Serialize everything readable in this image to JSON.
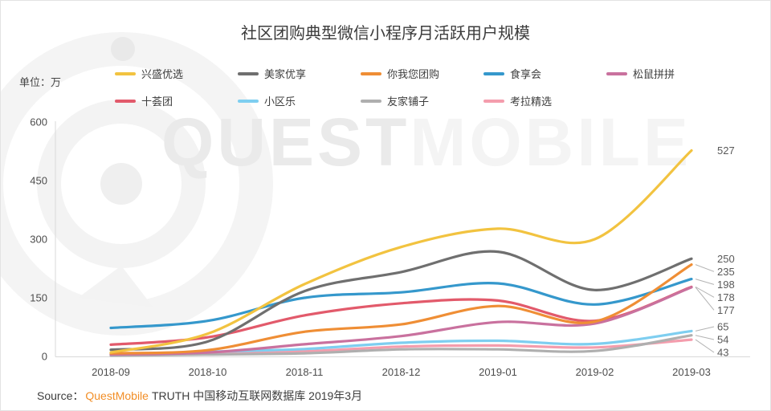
{
  "header": {
    "title": "社区团购典型微信小程序月活跃用户规模",
    "unit_label": "单位：万"
  },
  "watermark": {
    "text_left": "QUEST",
    "text_right": "MOBILE"
  },
  "legend": {
    "rows": [
      [
        {
          "label": "兴盛优选",
          "color": "#F2C340"
        },
        {
          "label": "美家优享",
          "color": "#6F6F6F"
        },
        {
          "label": "你我您团购",
          "color": "#EF8E35"
        },
        {
          "label": "食享会",
          "color": "#3598CC"
        },
        {
          "label": "松鼠拼拼",
          "color": "#C9719E"
        }
      ],
      [
        {
          "label": "十荟团",
          "color": "#E25A6B"
        },
        {
          "label": "小区乐",
          "color": "#7ECEF0"
        },
        {
          "label": "友家铺子",
          "color": "#AFAFAF"
        },
        {
          "label": "考拉精选",
          "color": "#F49DAD"
        }
      ]
    ]
  },
  "chart_data": {
    "type": "line",
    "title": "社区团购典型微信小程序月活跃用户规模",
    "unit": "万",
    "xlabel": "",
    "ylabel": "单位：万",
    "ylim": [
      0,
      600
    ],
    "yticks": [
      0,
      150,
      300,
      450,
      600
    ],
    "grid": false,
    "legend_position": "top",
    "categories": [
      "2018-09",
      "2018-10",
      "2018-11",
      "2018-12",
      "2019-01",
      "2019-02",
      "2019-03"
    ],
    "series": [
      {
        "name": "兴盛优选",
        "color": "#F2C340",
        "values": [
          10,
          58,
          185,
          280,
          327,
          300,
          527
        ]
      },
      {
        "name": "美家优享",
        "color": "#6F6F6F",
        "values": [
          17,
          38,
          167,
          216,
          268,
          170,
          250
        ]
      },
      {
        "name": "你我您团购",
        "color": "#EF8E35",
        "values": [
          8,
          16,
          63,
          82,
          129,
          89,
          235
        ]
      },
      {
        "name": "食享会",
        "color": "#3598CC",
        "values": [
          73,
          91,
          150,
          164,
          187,
          133,
          198
        ]
      },
      {
        "name": "松鼠拼拼",
        "color": "#C9719E",
        "values": [
          5,
          10,
          31,
          52,
          88,
          84,
          177
        ]
      },
      {
        "name": "十荟团",
        "color": "#E25A6B",
        "values": [
          30,
          49,
          105,
          136,
          143,
          91,
          178
        ]
      },
      {
        "name": "小区乐",
        "color": "#7ECEF0",
        "values": [
          5,
          12,
          19,
          35,
          40,
          32,
          65
        ]
      },
      {
        "name": "友家铺子",
        "color": "#AFAFAF",
        "values": [
          2,
          5,
          8,
          18,
          18,
          14,
          54
        ]
      },
      {
        "name": "考拉精选",
        "color": "#F49DAD",
        "values": [
          3,
          8,
          13,
          25,
          28,
          23,
          43
        ]
      }
    ]
  },
  "source": {
    "prefix": "Source：",
    "brand": "QuestMobile",
    "suffix": "TRUTH 中国移动互联网数据库 2019年3月",
    "brand_color": "#F28E26"
  }
}
